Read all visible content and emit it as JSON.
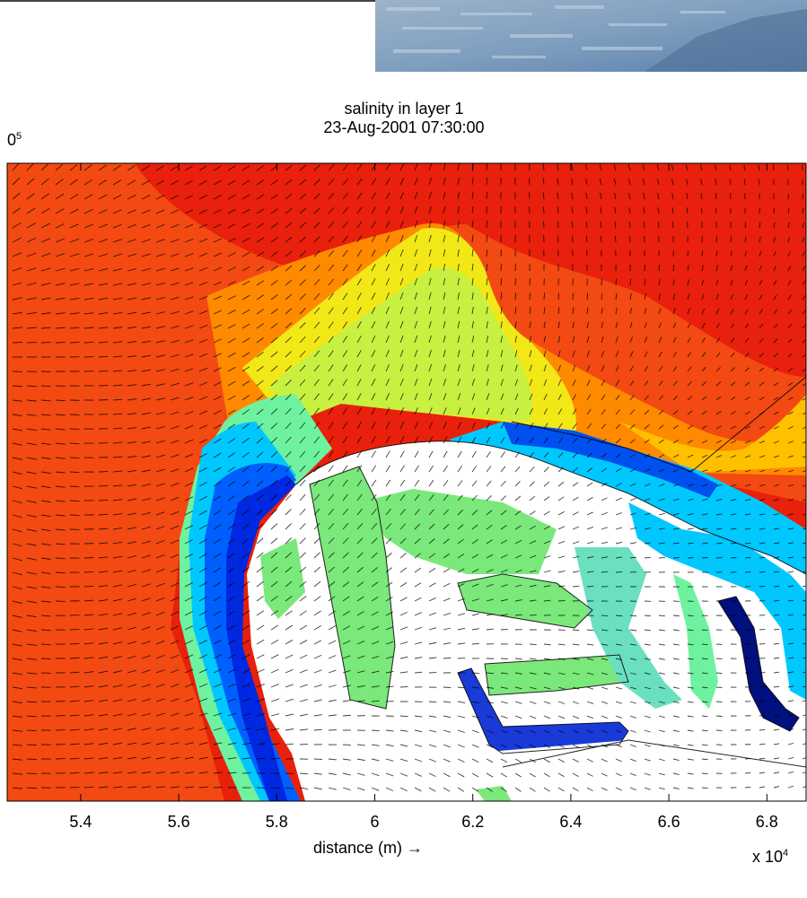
{
  "chart_data": {
    "type": "heatmap",
    "title_line1": "salinity in layer 1",
    "title_line2": "23-Aug-2001 07:30:00",
    "clipped_label_base": "0",
    "clipped_label_exp": "5",
    "xlabel": "distance (m) →",
    "x_multiplier_base": "x 10",
    "x_multiplier_exp": "4",
    "x_ticks": [
      "5.4",
      "5.6",
      "5.8",
      "6",
      "6.2",
      "6.4",
      "6.6",
      "6.8"
    ],
    "x_tick_values": [
      5.4,
      5.6,
      5.8,
      6.0,
      6.2,
      6.4,
      6.6,
      6.8
    ],
    "xlim": [
      5.25,
      6.88
    ],
    "overlay": "velocity vectors (quiver)",
    "colormap": [
      "#00007f",
      "#0000ff",
      "#0060ff",
      "#00c8ff",
      "#6ef2a0",
      "#c8f040",
      "#f0f000",
      "#ffa500",
      "#ff4000",
      "#e01000"
    ]
  }
}
